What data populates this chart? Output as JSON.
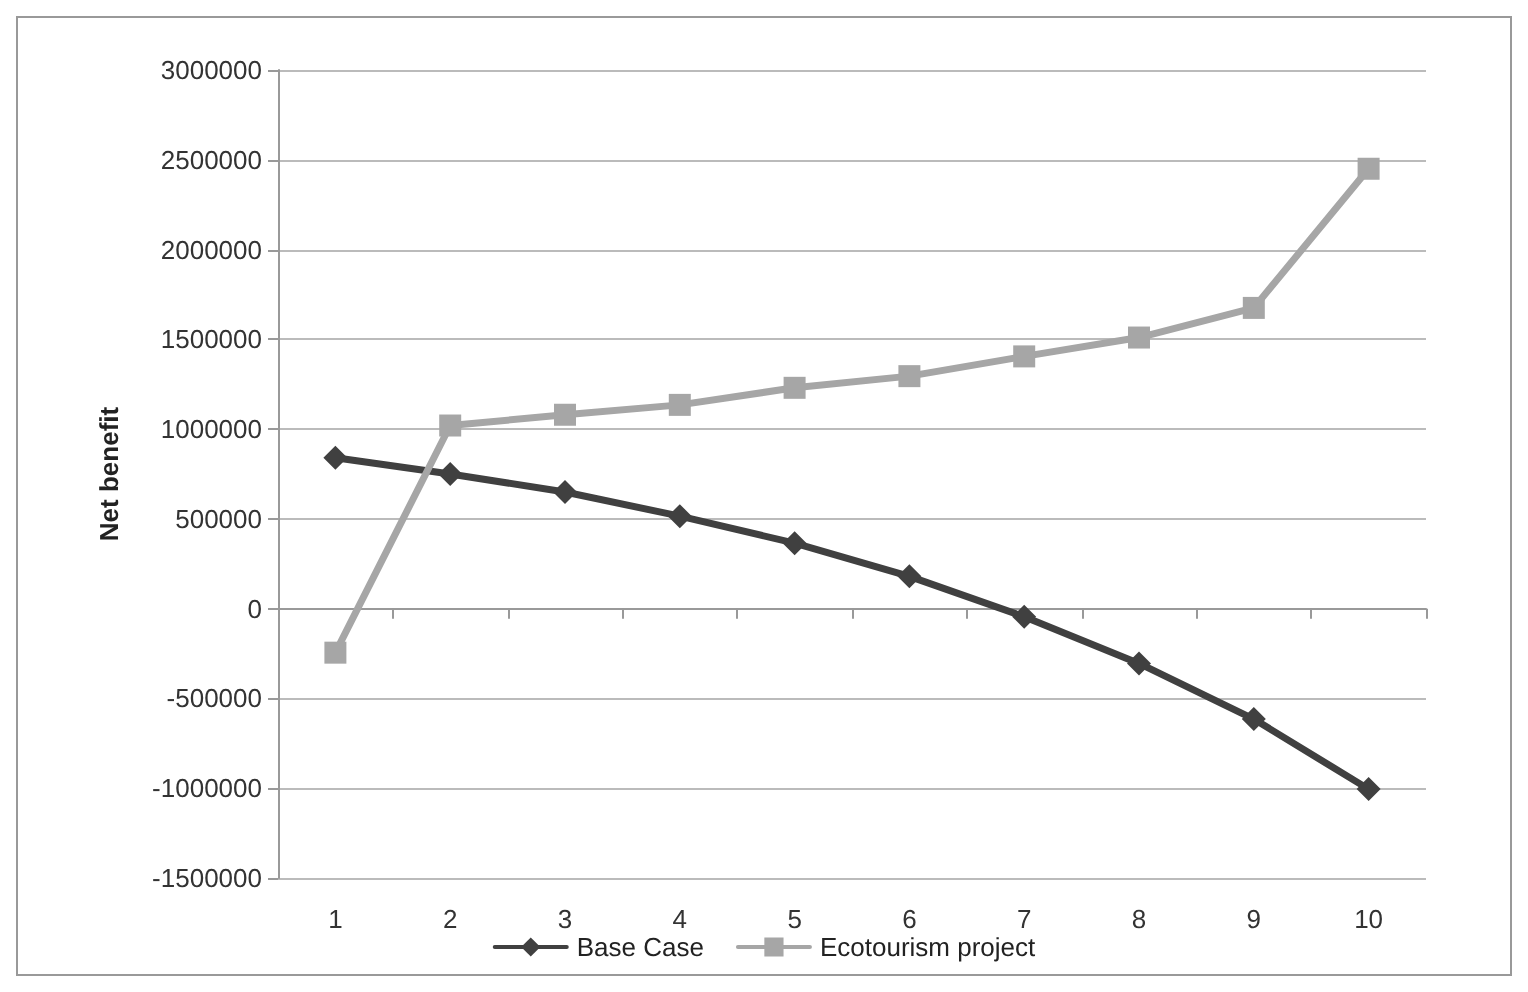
{
  "chart_data": {
    "type": "line",
    "ylabel": "Net benefit",
    "categories": [
      "1",
      "2",
      "3",
      "4",
      "5",
      "6",
      "7",
      "8",
      "9",
      "10"
    ],
    "series": [
      {
        "name": "Base Case",
        "color": "#404040",
        "marker": "diamond",
        "values": [
          840000,
          750000,
          650000,
          515000,
          365000,
          180000,
          -45000,
          -305000,
          -615000,
          -1005000
        ]
      },
      {
        "name": "Ecotourism project",
        "color": "#a6a6a6",
        "marker": "square",
        "values": [
          -245000,
          1020000,
          1080000,
          1135000,
          1230000,
          1295000,
          1405000,
          1510000,
          1675000,
          2450000
        ]
      }
    ],
    "ylim": [
      -1500000,
      3000000
    ],
    "yticks": [
      -1500000,
      -1000000,
      -500000,
      0,
      500000,
      1000000,
      1500000,
      2000000,
      2500000,
      3000000
    ],
    "grid": "y",
    "legend": "bottom"
  }
}
